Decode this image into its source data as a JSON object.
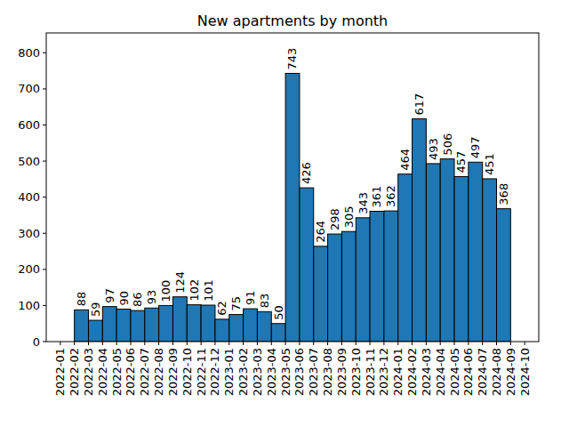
{
  "chart_data": {
    "type": "histogram",
    "title": "New apartments by month",
    "bins": [
      "2022-02",
      "2022-03",
      "2022-04",
      "2022-05",
      "2022-06",
      "2022-07",
      "2022-08",
      "2022-09",
      "2022-10",
      "2022-11",
      "2022-12",
      "2023-01",
      "2023-02",
      "2023-03",
      "2023-04",
      "2023-05",
      "2023-06",
      "2023-07",
      "2023-08",
      "2023-09",
      "2023-10",
      "2023-11",
      "2023-12",
      "2024-01",
      "2024-02",
      "2024-03",
      "2024-04",
      "2024-05",
      "2024-06",
      "2024-07",
      "2024-08",
      "2024-09"
    ],
    "values": [
      88,
      59,
      97,
      90,
      86,
      93,
      100,
      124,
      102,
      101,
      62,
      75,
      91,
      83,
      50,
      743,
      426,
      264,
      298,
      305,
      343,
      361,
      362,
      464,
      617,
      493,
      506,
      457,
      497,
      451,
      368
    ],
    "color": "#1f77b4",
    "data_labels": true,
    "xlim": [
      "2021-12",
      "2024-11"
    ],
    "xticks": [
      "2022-01",
      "2022-02",
      "2022-03",
      "2022-04",
      "2022-05",
      "2022-06",
      "2022-07",
      "2022-08",
      "2022-09",
      "2022-10",
      "2022-11",
      "2022-12",
      "2023-01",
      "2023-02",
      "2023-03",
      "2023-04",
      "2023-05",
      "2023-06",
      "2023-07",
      "2023-08",
      "2023-09",
      "2023-10",
      "2023-11",
      "2023-12",
      "2024-01",
      "2024-02",
      "2024-03",
      "2024-04",
      "2024-05",
      "2024-06",
      "2024-07",
      "2024-08",
      "2024-09",
      "2024-10"
    ],
    "ylim": [
      0,
      855
    ],
    "yticks": [
      0,
      100,
      200,
      300,
      400,
      500,
      600,
      700,
      800
    ]
  }
}
